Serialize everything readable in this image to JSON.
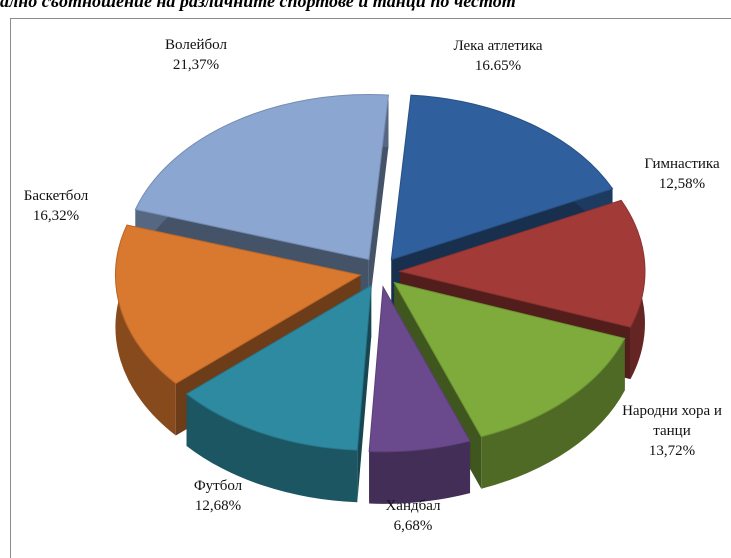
{
  "title": "ално съотношение на различните спортове и танци по честот",
  "chart_data": {
    "type": "pie",
    "three_d": true,
    "exploded": true,
    "legend": "none",
    "slices": [
      {
        "label": "Лека атлетика",
        "value_label": "16.65%",
        "value": 16.65,
        "color": "#2f5f9c"
      },
      {
        "label": "Гимнастика",
        "value_label": "12,58%",
        "value": 12.58,
        "color": "#a23b38"
      },
      {
        "label": "Народни хора и",
        "label2": "танци",
        "value_label": "13,72%",
        "value": 13.72,
        "color": "#7eab3c"
      },
      {
        "label": "Хандбал",
        "value_label": "6,68%",
        "value": 6.68,
        "color": "#6a4a8c"
      },
      {
        "label": "Футбол",
        "value_label": "12,68%",
        "value": 12.68,
        "color": "#2e8aa0"
      },
      {
        "label": "Баскетбол",
        "value_label": "16,32%",
        "value": 16.32,
        "color": "#d9782f"
      },
      {
        "label": "Волейбол",
        "value_label": "21,37%",
        "value": 21.37,
        "color": "#8aa6d1"
      }
    ]
  }
}
